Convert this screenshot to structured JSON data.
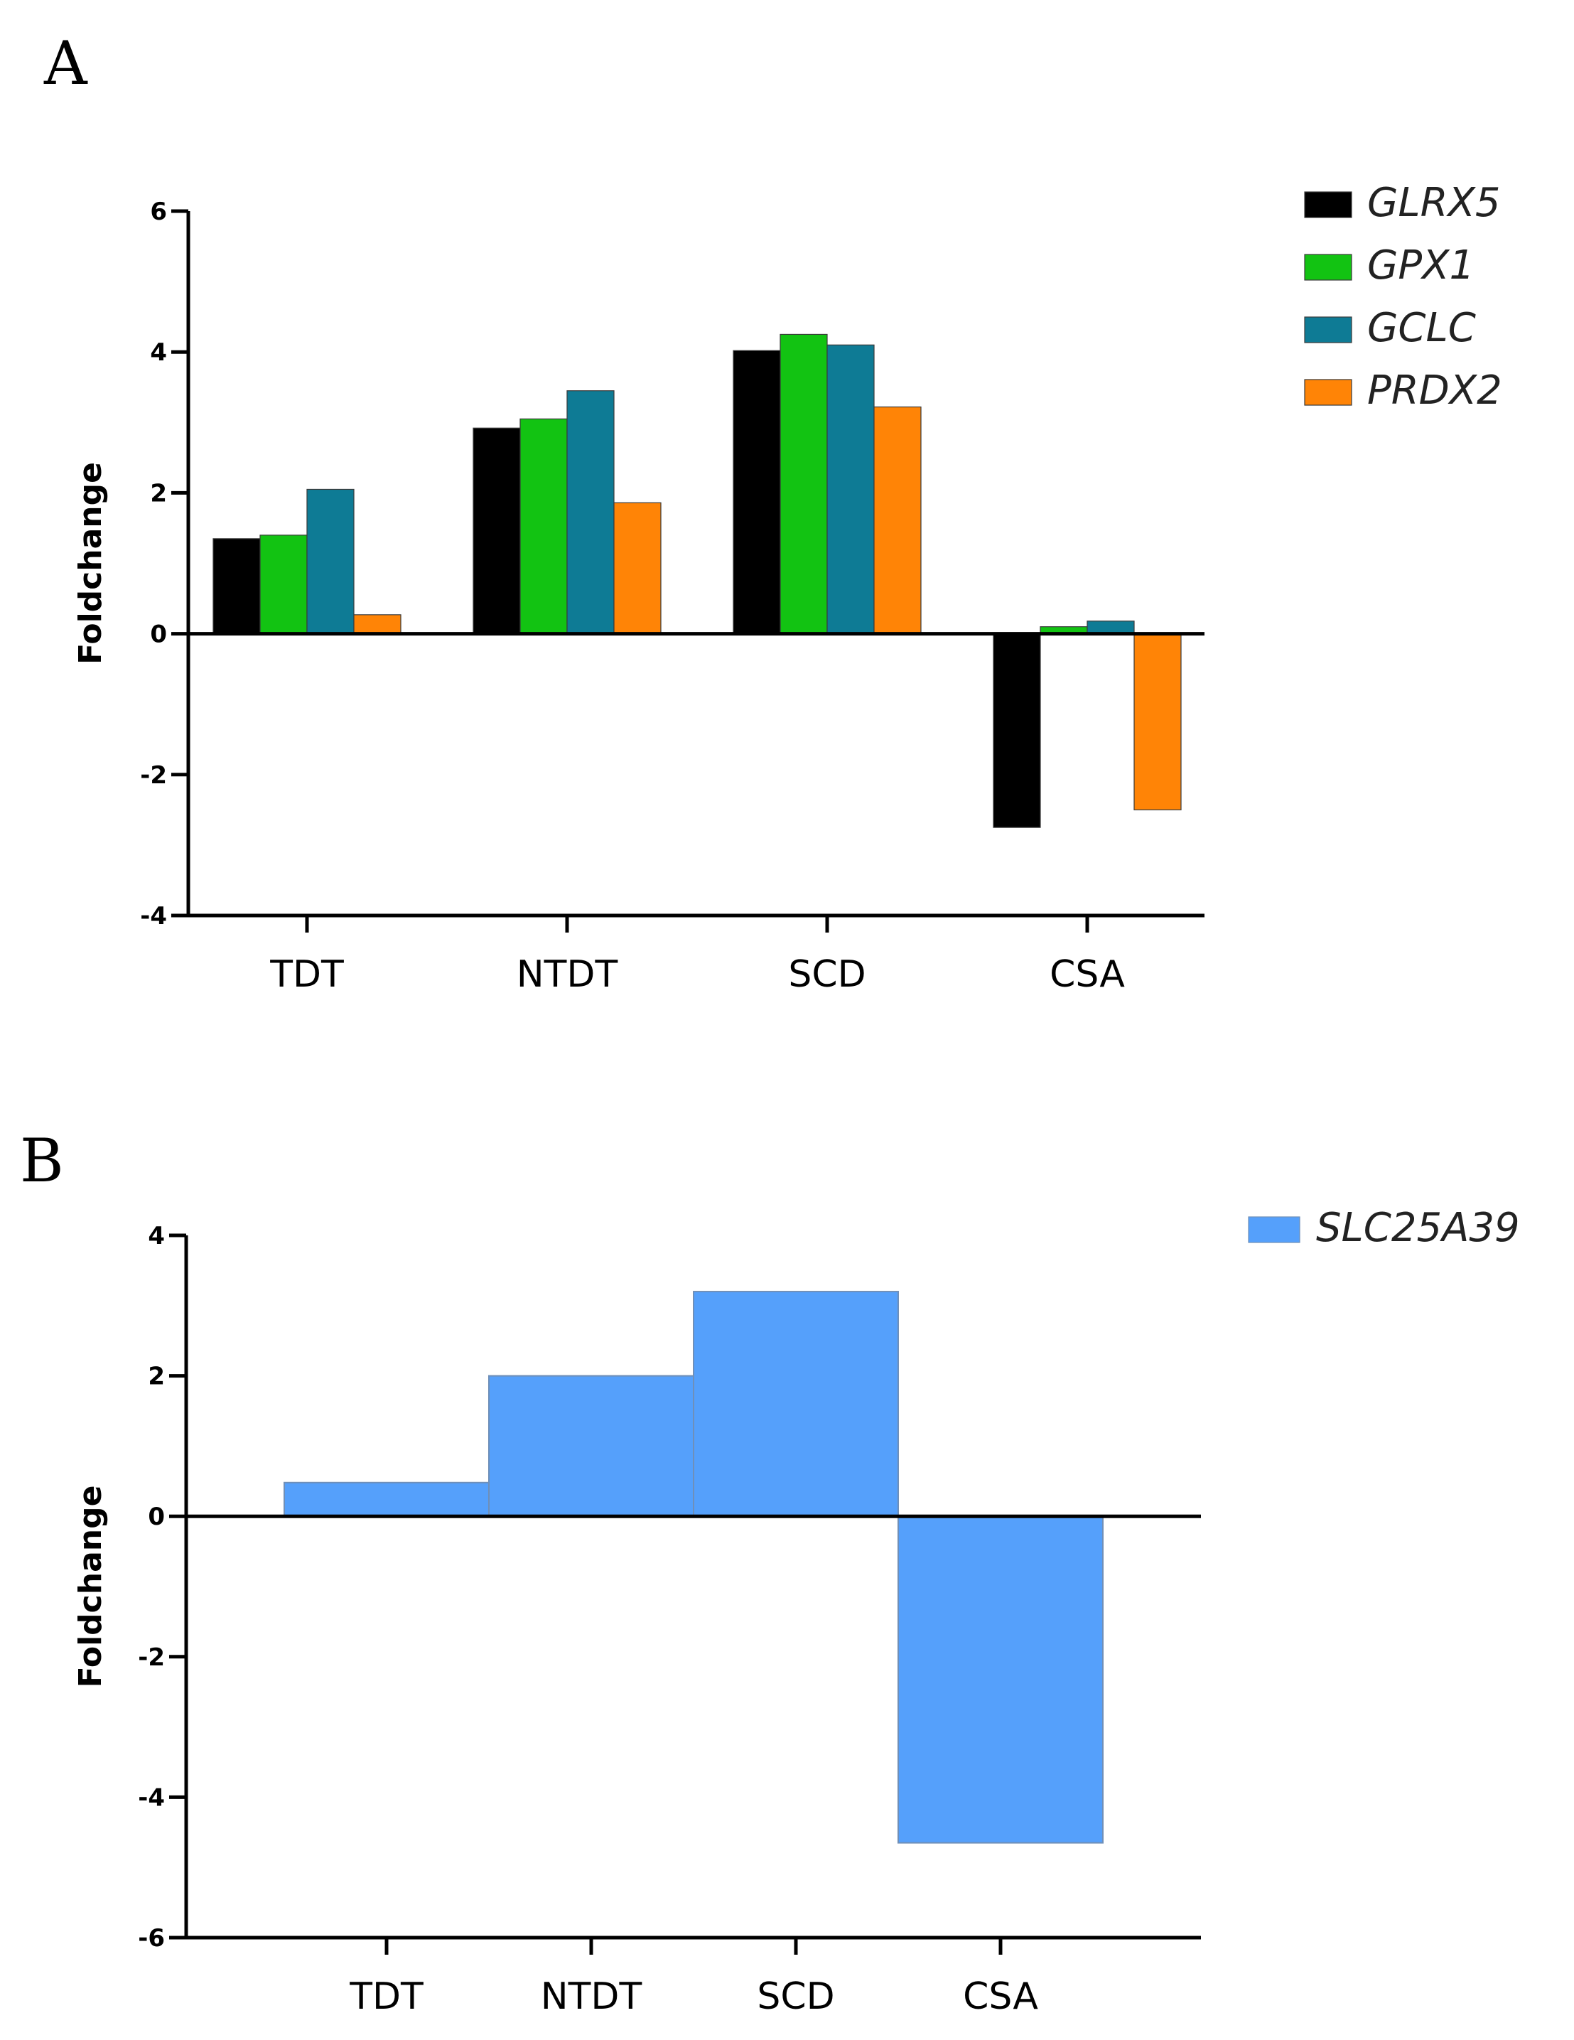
{
  "chart_data": [
    {
      "panel": "A",
      "type": "bar",
      "title": "",
      "xlabel": "",
      "ylabel": "Foldchange",
      "ylim": [
        -4,
        6
      ],
      "yticks": [
        -4,
        -2,
        0,
        2,
        4,
        6
      ],
      "categories": [
        "TDT",
        "NTDT",
        "SCD",
        "CSA"
      ],
      "series": [
        {
          "name": "GLRX5",
          "color": "#000000",
          "values": [
            1.35,
            2.92,
            4.02,
            -2.75
          ]
        },
        {
          "name": "GPX1",
          "color": "#12c312",
          "values": [
            1.4,
            3.05,
            4.25,
            0.1
          ]
        },
        {
          "name": "GCLC",
          "color": "#0e7b95",
          "values": [
            2.05,
            3.45,
            4.1,
            0.18
          ]
        },
        {
          "name": "PRDX2",
          "color": "#ff8406",
          "values": [
            0.27,
            1.86,
            3.22,
            -2.5
          ]
        }
      ],
      "legend_position": "top-right"
    },
    {
      "panel": "B",
      "type": "bar",
      "title": "",
      "xlabel": "",
      "ylabel": "Foldchange",
      "ylim": [
        -6,
        4
      ],
      "yticks": [
        -6,
        -4,
        -2,
        0,
        2,
        4
      ],
      "categories": [
        "TDT",
        "NTDT",
        "SCD",
        "CSA"
      ],
      "series": [
        {
          "name": "SLC25A39",
          "color": "#55a0fb",
          "values": [
            0.48,
            2.0,
            3.2,
            -4.65
          ]
        }
      ],
      "legend_position": "top-right"
    }
  ]
}
